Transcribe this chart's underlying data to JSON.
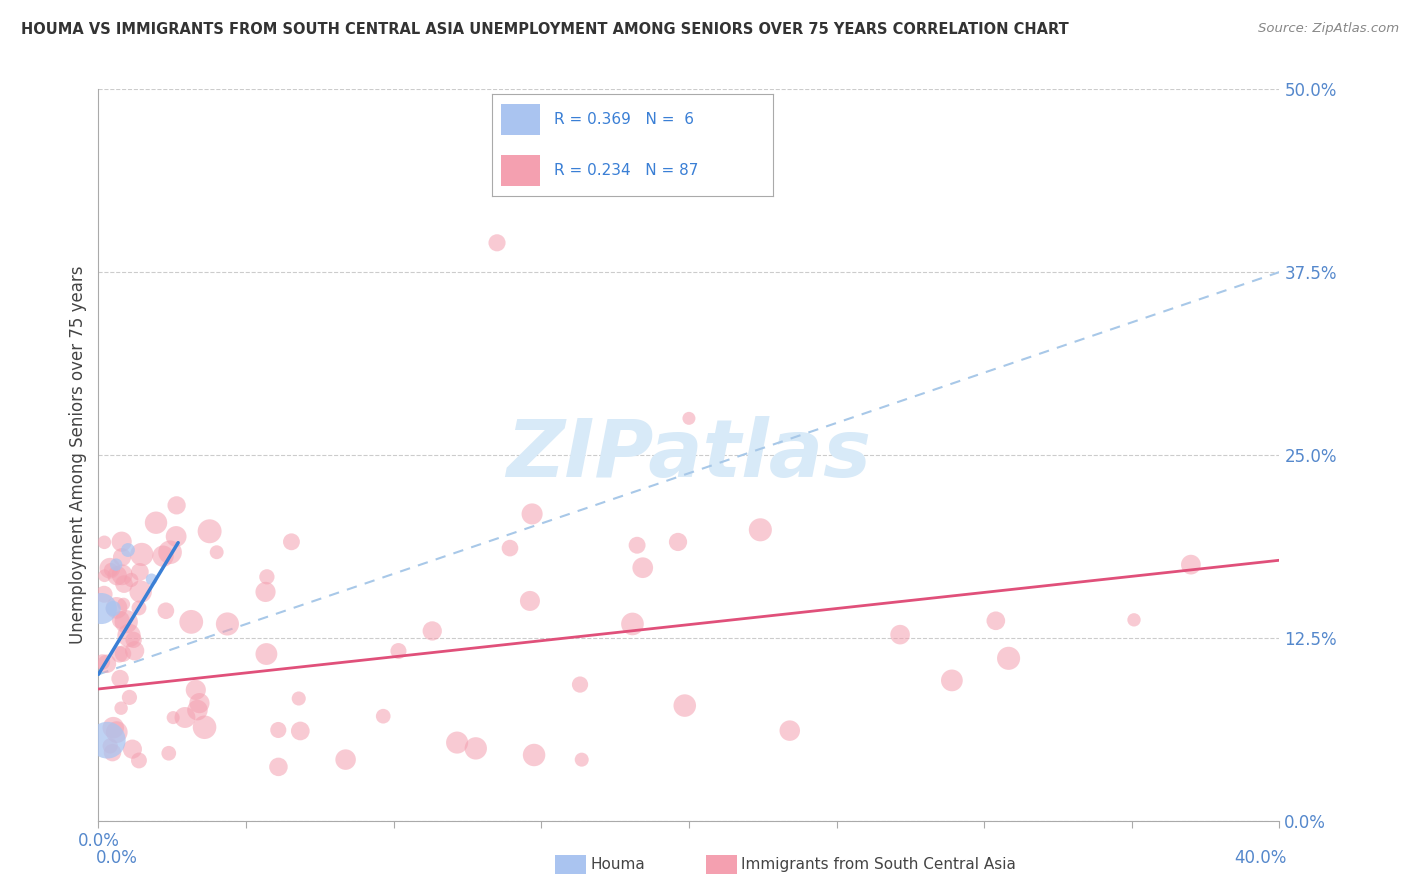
{
  "title": "HOUMA VS IMMIGRANTS FROM SOUTH CENTRAL ASIA UNEMPLOYMENT AMONG SENIORS OVER 75 YEARS CORRELATION CHART",
  "source": "Source: ZipAtlas.com",
  "ylabel": "Unemployment Among Seniors over 75 years",
  "xlim": [
    0.0,
    0.4
  ],
  "ylim": [
    0.0,
    0.5
  ],
  "xticks": [
    0.0,
    0.05,
    0.1,
    0.15,
    0.2,
    0.25,
    0.3,
    0.35,
    0.4
  ],
  "yticks": [
    0.0,
    0.125,
    0.25,
    0.375,
    0.5
  ],
  "ytick_labels": [
    "0.0%",
    "12.5%",
    "25.0%",
    "37.5%",
    "50.0%"
  ],
  "houma_points": {
    "x": [
      0.001,
      0.003,
      0.005,
      0.006,
      0.01,
      0.018
    ],
    "y": [
      0.145,
      0.055,
      0.145,
      0.175,
      0.185,
      0.165
    ],
    "sizes": [
      500,
      700,
      120,
      80,
      100,
      70
    ],
    "color": "#aac4f0",
    "alpha": 0.75
  },
  "immigrants_color": "#f4a0b0",
  "immigrants_alpha": 0.55,
  "houma_trend_color": "#3a7fd5",
  "houma_trend_lw": 2.5,
  "houma_dashed_color": "#a8c8e8",
  "houma_dashed_lw": 1.5,
  "immigrants_trend_color": "#e0507a",
  "immigrants_trend_lw": 2.0,
  "background_color": "#ffffff",
  "grid_color": "#cccccc",
  "axis_tick_color": "#5588cc",
  "title_color": "#333333",
  "watermark": "ZIPatlas",
  "watermark_color": "#d8eaf8",
  "legend_R1": "R = 0.369",
  "legend_N1": "N =  6",
  "legend_R2": "R = 0.234",
  "legend_N2": "N = 87",
  "legend_color1": "#aac4f0",
  "legend_color2": "#f4a0b0",
  "legend_text_color": "#3a7fd5"
}
